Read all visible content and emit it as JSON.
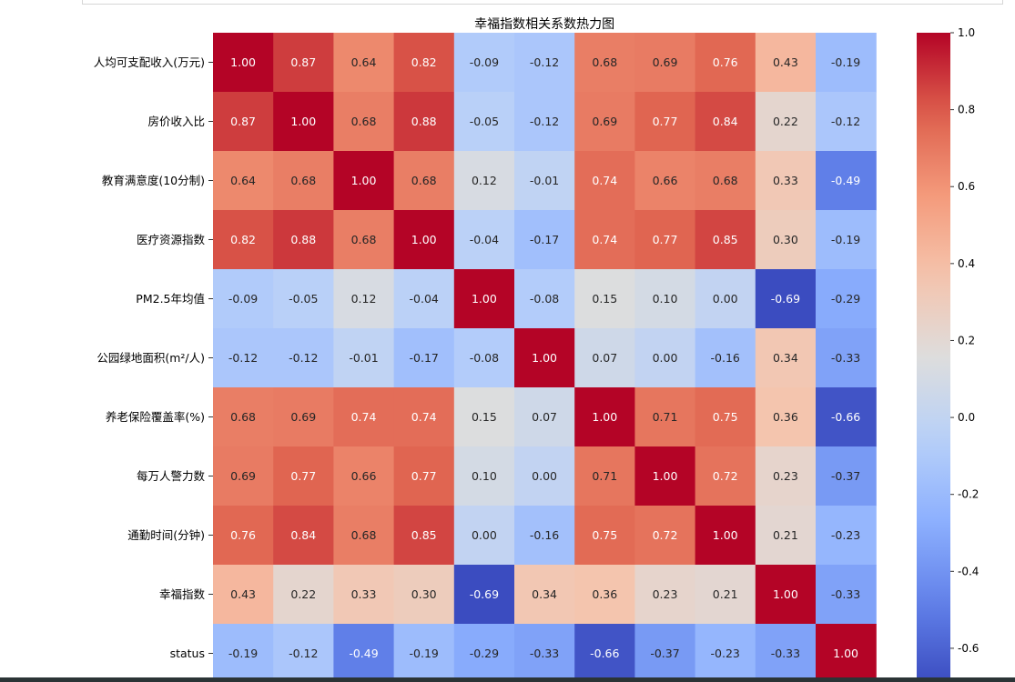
{
  "chart_data": {
    "type": "heatmap",
    "title": "幸福指数相关系数热力图",
    "labels": [
      "人均可支配收入(万元)",
      "房价收入比",
      "教育满意度(10分制)",
      "医疗资源指数",
      "PM2.5年均值",
      "公园绿地面积(m²/人)",
      "养老保险覆盖率(%)",
      "每万人警力数",
      "通勤时间(分钟)",
      "幸福指数",
      "status"
    ],
    "matrix": [
      [
        1.0,
        0.87,
        0.64,
        0.82,
        -0.09,
        -0.12,
        0.68,
        0.69,
        0.76,
        0.43,
        -0.19
      ],
      [
        0.87,
        1.0,
        0.68,
        0.88,
        -0.05,
        -0.12,
        0.69,
        0.77,
        0.84,
        0.22,
        -0.12
      ],
      [
        0.64,
        0.68,
        1.0,
        0.68,
        0.12,
        -0.01,
        0.74,
        0.66,
        0.68,
        0.33,
        -0.49
      ],
      [
        0.82,
        0.88,
        0.68,
        1.0,
        -0.04,
        -0.17,
        0.74,
        0.77,
        0.85,
        0.3,
        -0.19
      ],
      [
        -0.09,
        -0.05,
        0.12,
        -0.04,
        1.0,
        -0.08,
        0.15,
        0.1,
        -0.0,
        -0.69,
        -0.29
      ],
      [
        -0.12,
        -0.12,
        -0.01,
        -0.17,
        -0.08,
        1.0,
        0.07,
        0.0,
        -0.16,
        0.34,
        -0.33
      ],
      [
        0.68,
        0.69,
        0.74,
        0.74,
        0.15,
        0.07,
        1.0,
        0.71,
        0.75,
        0.36,
        -0.66
      ],
      [
        0.69,
        0.77,
        0.66,
        0.77,
        0.1,
        0.0,
        0.71,
        1.0,
        0.72,
        0.23,
        -0.37
      ],
      [
        0.76,
        0.84,
        0.68,
        0.85,
        -0.0,
        -0.16,
        0.75,
        0.72,
        1.0,
        0.21,
        -0.23
      ],
      [
        0.43,
        0.22,
        0.33,
        0.3,
        -0.69,
        0.34,
        0.36,
        0.23,
        0.21,
        1.0,
        -0.33
      ],
      [
        -0.19,
        -0.12,
        -0.49,
        -0.19,
        -0.29,
        -0.33,
        -0.66,
        -0.37,
        -0.23,
        -0.33,
        1.0
      ]
    ],
    "value_format": "2 decimals",
    "colormap": "coolwarm",
    "vmin": -0.69,
    "vmax": 1.0,
    "colorbar_ticks": [
      1.0,
      0.8,
      0.6,
      0.4,
      0.2,
      0.0,
      -0.2,
      -0.4,
      -0.6
    ],
    "colorbar_tick_labels": [
      "1.0",
      "0.8",
      "0.6",
      "0.4",
      "0.2",
      "0.0",
      "-0.2",
      "-0.4",
      "-0.6"
    ],
    "grid": false,
    "legend": "colorbar right"
  }
}
